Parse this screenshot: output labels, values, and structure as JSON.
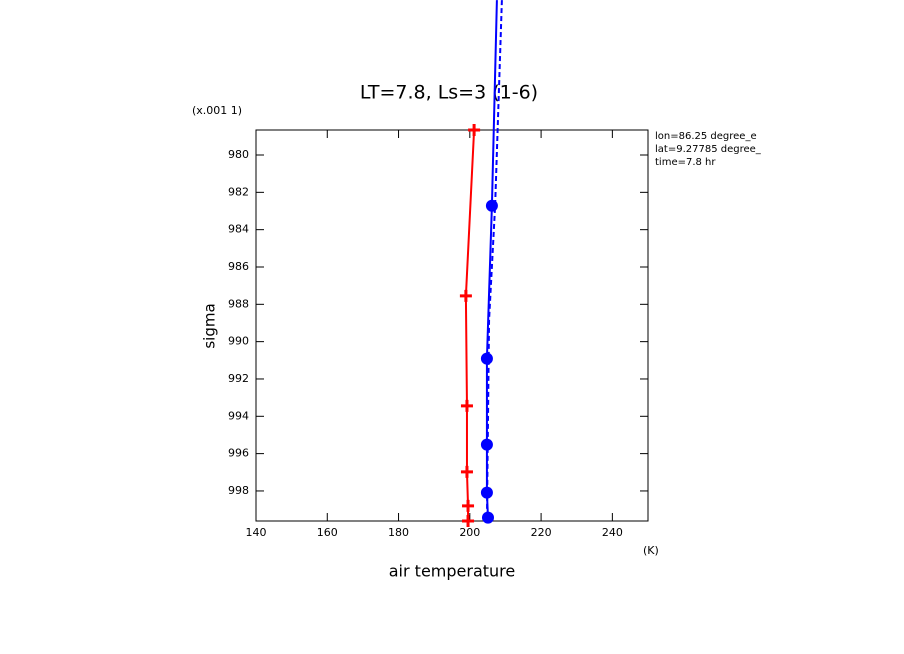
{
  "chart_data": {
    "type": "line",
    "title": "LT=7.8, Ls=3 (1-6)",
    "xlabel": "air temperature",
    "ylabel": "sigma",
    "x_unit": "(K)",
    "y_scale_note": "(x.001 1)",
    "annotations": [
      "lon=86.25 degree_e",
      "lat=9.27785 degree_",
      "time=7.8 hr"
    ],
    "xlim": [
      140,
      250
    ],
    "ylim": [
      978.66,
      999.61
    ],
    "y_inverted": true,
    "xticks": [
      140,
      160,
      180,
      200,
      220,
      240
    ],
    "yticks": [
      980,
      982,
      984,
      986,
      988,
      990,
      992,
      994,
      996,
      998
    ],
    "series": [
      {
        "color": "#ff0000",
        "marker": "cross",
        "dash": false,
        "x": [
          201.2,
          198.9,
          199.2,
          199.2,
          199.5,
          199.5
        ],
        "y": [
          978.66,
          987.55,
          993.44,
          996.98,
          998.8,
          999.61
        ]
      },
      {
        "color": "#0000ff",
        "marker": "circle",
        "dash": false,
        "x": [
          207.6,
          206.2,
          204.8,
          204.8,
          204.8,
          205.1
        ],
        "y": [
          971.7,
          982.72,
          990.91,
          995.52,
          998.09,
          999.43
        ]
      },
      {
        "color": "#0000ff",
        "marker": "none",
        "dash": true,
        "x": [
          209.0,
          207.1,
          205.4,
          204.8
        ],
        "y": [
          971.7,
          982.72,
          988.84,
          999.56
        ]
      }
    ]
  }
}
